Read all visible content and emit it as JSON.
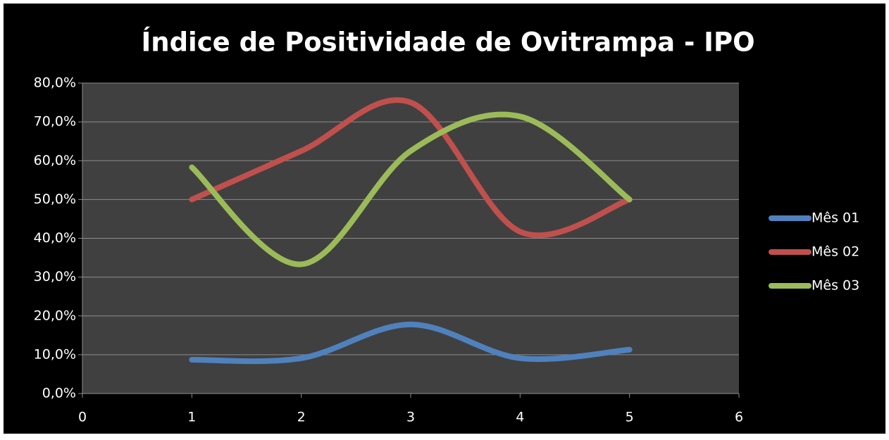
{
  "chart_data": {
    "type": "line",
    "title": "Índice de Positividade de Ovitrampa - IPO",
    "x": [
      1,
      2,
      3,
      4,
      5
    ],
    "series": [
      {
        "name": "Mês 01",
        "color": "#4f81bd",
        "values": [
          8.7,
          9.1,
          17.8,
          9.1,
          11.3
        ]
      },
      {
        "name": "Mês 02",
        "color": "#c0504d",
        "values": [
          50.0,
          62.5,
          75.0,
          41.7,
          50.0
        ]
      },
      {
        "name": "Mês 03",
        "color": "#9bbb59",
        "values": [
          58.3,
          33.3,
          62.5,
          71.4,
          50.0
        ]
      }
    ],
    "xlim": [
      0,
      6
    ],
    "xticks": [
      0,
      1,
      2,
      3,
      4,
      5,
      6
    ],
    "ylim": [
      0,
      80
    ],
    "yticks": [
      {
        "value": 0,
        "label": "0,0%"
      },
      {
        "value": 10,
        "label": "10,0%"
      },
      {
        "value": 20,
        "label": "20,0%"
      },
      {
        "value": 30,
        "label": "30,0%"
      },
      {
        "value": 40,
        "label": "40,0%"
      },
      {
        "value": 50,
        "label": "50,0%"
      },
      {
        "value": 60,
        "label": "60,0%"
      },
      {
        "value": 70,
        "label": "70,0%"
      },
      {
        "value": 80,
        "label": "80,0%"
      }
    ],
    "grid": true,
    "smooth": true,
    "legend": "right"
  }
}
